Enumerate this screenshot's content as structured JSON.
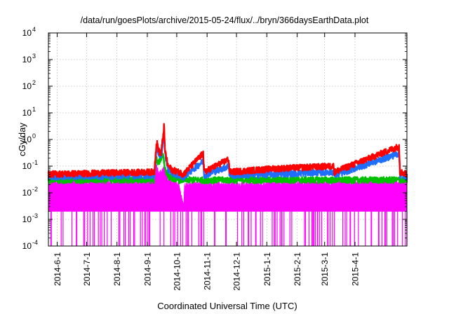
{
  "chart_data": {
    "type": "line",
    "title": "/data/run/goesPlots/archive/2015-05-24/flux/../bryn/366daysEarthData.plot",
    "xlabel": "Coordinated Universal Time (UTC)",
    "ylabel": "cGy/day",
    "yscale": "log",
    "ylim": [
      0.0001,
      10000
    ],
    "xlim": [
      "2014-05-23",
      "2015-05-24"
    ],
    "grid": true,
    "legend": "none",
    "y_ticks": [
      {
        "base": "10",
        "exp": "-4"
      },
      {
        "base": "10",
        "exp": "-3"
      },
      {
        "base": "10",
        "exp": "-2"
      },
      {
        "base": "10",
        "exp": "-1"
      },
      {
        "base": "10",
        "exp": "0"
      },
      {
        "base": "10",
        "exp": "1"
      },
      {
        "base": "10",
        "exp": "2"
      },
      {
        "base": "10",
        "exp": "3"
      },
      {
        "base": "10",
        "exp": "4"
      }
    ],
    "x_ticks": [
      "2014-6-1",
      "2014-7-1",
      "2014-8-1",
      "2014-9-1",
      "2014-10-1",
      "2014-11-1",
      "2014-12-1",
      "2015-1-1",
      "2015-2-1",
      "2015-3-1",
      "2015-4-1"
    ],
    "series_colors": [
      "#ff0000",
      "#1e6fff",
      "#00c000",
      "#ff00ff"
    ],
    "series": [
      {
        "color": "#ff0000",
        "baseline": 0.05,
        "points": [
          [
            "2014-05-23",
            0.05
          ],
          [
            "2014-09-08",
            0.06
          ],
          [
            "2014-09-10",
            0.5
          ],
          [
            "2014-09-11",
            0.7
          ],
          [
            "2014-09-13",
            0.35
          ],
          [
            "2014-09-15",
            0.3
          ],
          [
            "2014-09-17",
            1.2
          ],
          [
            "2014-09-18",
            3.2
          ],
          [
            "2014-09-19",
            0.4
          ],
          [
            "2014-09-22",
            0.1
          ],
          [
            "2014-09-27",
            0.07
          ],
          [
            "2014-10-03",
            0.06
          ],
          [
            "2014-10-08",
            0.05
          ],
          [
            "2014-10-28",
            0.3
          ],
          [
            "2014-10-29",
            0.06
          ],
          [
            "2014-11-23",
            0.18
          ],
          [
            "2014-11-24",
            0.06
          ],
          [
            "2015-01-08",
            0.08
          ],
          [
            "2015-03-10",
            0.1
          ],
          [
            "2015-03-11",
            0.06
          ],
          [
            "2015-05-16",
            0.55
          ],
          [
            "2015-05-17",
            0.06
          ],
          [
            "2015-05-24",
            0.05
          ]
        ]
      },
      {
        "color": "#1e6fff",
        "baseline": 0.04,
        "points": [
          [
            "2014-05-23",
            0.04
          ],
          [
            "2014-09-08",
            0.045
          ],
          [
            "2014-09-10",
            0.35
          ],
          [
            "2014-09-11",
            0.55
          ],
          [
            "2014-09-13",
            0.25
          ],
          [
            "2014-09-15",
            0.22
          ],
          [
            "2014-09-17",
            0.9
          ],
          [
            "2014-09-18",
            2.0
          ],
          [
            "2014-09-19",
            0.3
          ],
          [
            "2014-09-22",
            0.08
          ],
          [
            "2014-09-27",
            0.05
          ],
          [
            "2014-10-03",
            0.045
          ],
          [
            "2014-10-08",
            0.04
          ],
          [
            "2014-10-28",
            0.15
          ],
          [
            "2014-10-29",
            0.045
          ],
          [
            "2014-11-23",
            0.1
          ],
          [
            "2014-11-24",
            0.045
          ],
          [
            "2015-01-08",
            0.05
          ],
          [
            "2015-03-10",
            0.06
          ],
          [
            "2015-03-11",
            0.045
          ],
          [
            "2015-05-16",
            0.3
          ],
          [
            "2015-05-17",
            0.045
          ],
          [
            "2015-05-24",
            0.04
          ]
        ]
      },
      {
        "color": "#00c000",
        "baseline": 0.03,
        "points": [
          [
            "2014-05-23",
            0.03
          ],
          [
            "2014-09-08",
            0.03
          ],
          [
            "2014-09-10",
            0.2
          ],
          [
            "2014-09-12",
            0.12
          ],
          [
            "2014-09-17",
            0.3
          ],
          [
            "2014-09-19",
            0.08
          ],
          [
            "2014-09-23",
            0.04
          ],
          [
            "2014-10-03",
            0.03
          ],
          [
            "2015-05-24",
            0.03
          ]
        ]
      },
      {
        "color": "#ff00ff",
        "baseline": 0.025,
        "floor": 0.002,
        "points": [
          [
            "2014-05-23",
            0.025
          ],
          [
            "2014-09-08",
            0.025
          ],
          [
            "2014-09-10",
            0.12
          ],
          [
            "2014-09-13",
            0.05
          ],
          [
            "2014-09-18",
            0.08
          ],
          [
            "2014-09-22",
            0.03
          ],
          [
            "2014-10-03",
            0.02
          ],
          [
            "2014-10-08",
            0.003
          ],
          [
            "2014-10-09",
            0.02
          ],
          [
            "2015-05-24",
            0.025
          ]
        ]
      }
    ]
  }
}
